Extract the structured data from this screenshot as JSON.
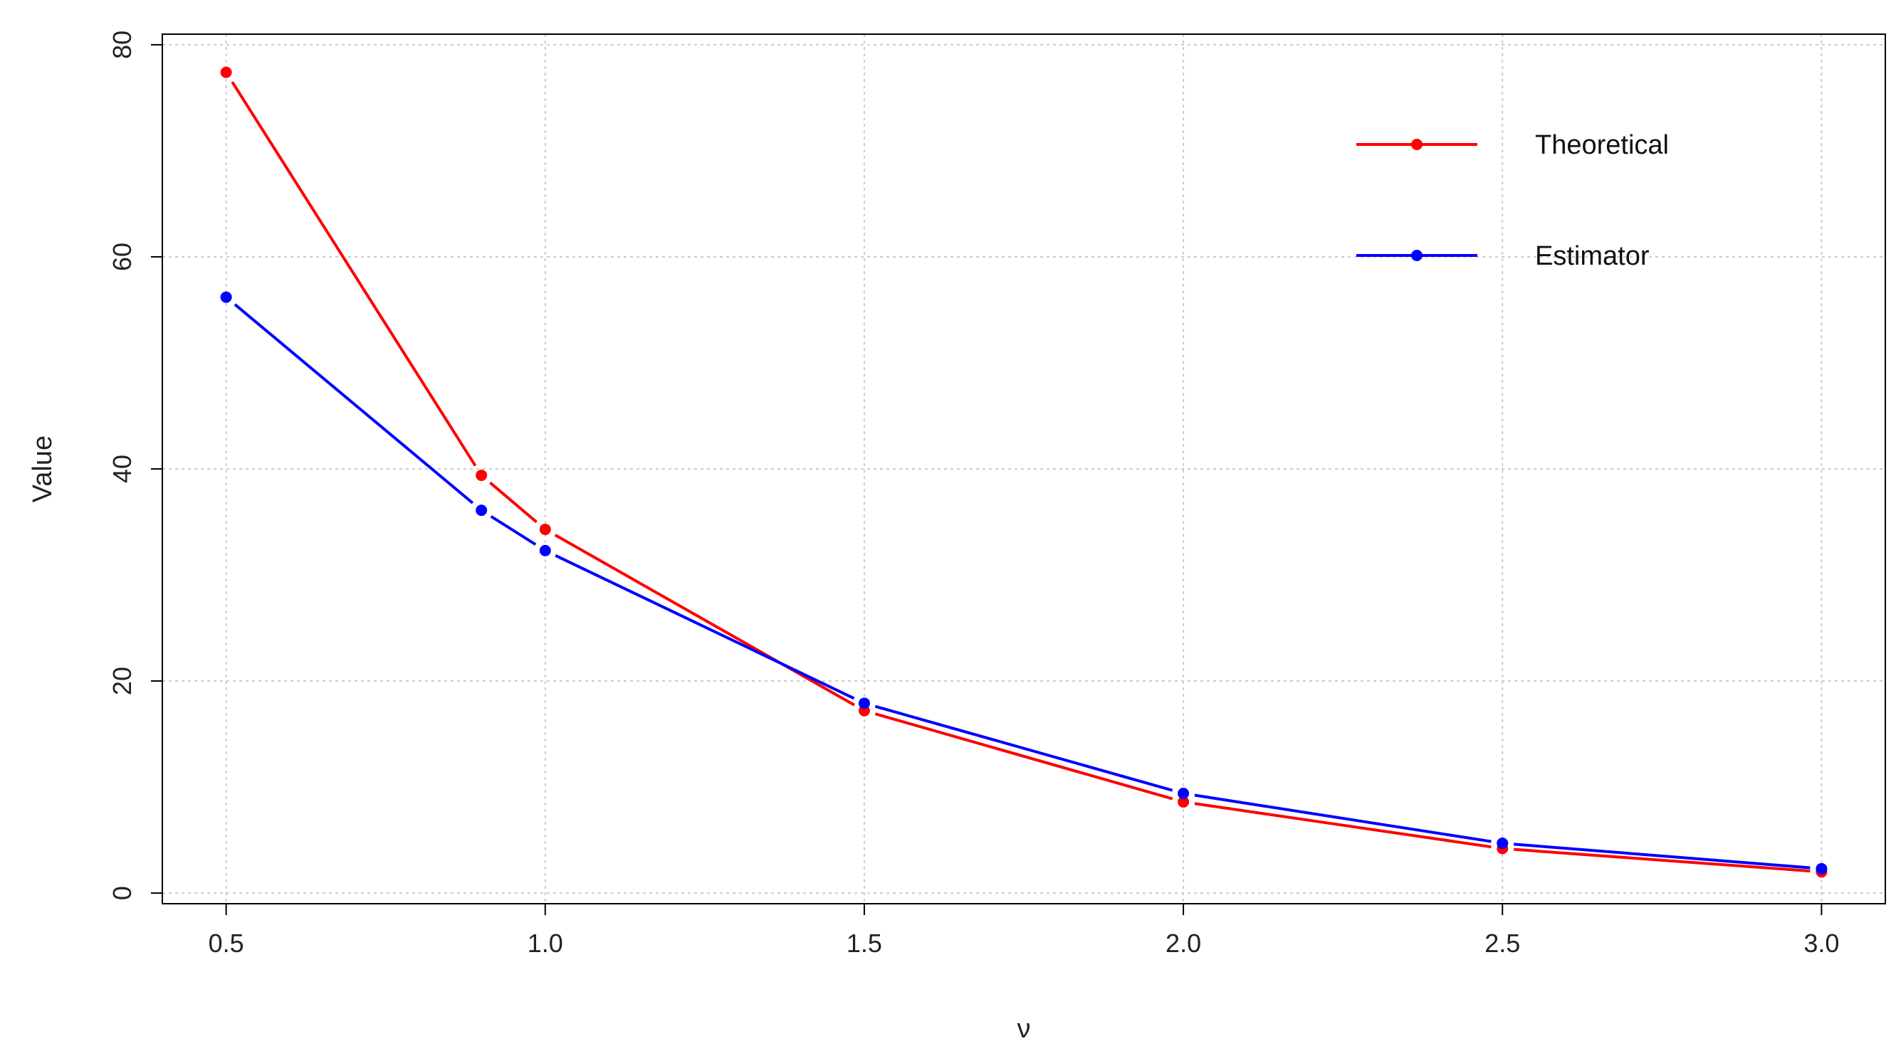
{
  "chart_data": {
    "type": "line",
    "xlabel": "ν",
    "ylabel": "Value",
    "x": [
      0.5,
      0.9,
      1.0,
      1.5,
      2.0,
      2.5,
      3.0
    ],
    "xlim": [
      0.4,
      3.1
    ],
    "ylim": [
      -1,
      81
    ],
    "xticks": [
      0.5,
      1.0,
      1.5,
      2.0,
      2.5,
      3.0
    ],
    "xtick_labels": [
      "0.5",
      "1.0",
      "1.5",
      "2.0",
      "2.5",
      "3.0"
    ],
    "yticks": [
      0,
      20,
      40,
      60,
      80
    ],
    "ytick_labels": [
      "0",
      "20",
      "40",
      "60",
      "80"
    ],
    "grid": true,
    "legend_position": "top-right",
    "series": [
      {
        "name": "Theoretical",
        "color": "#ff0000",
        "values": [
          77.4,
          39.4,
          34.3,
          17.2,
          8.6,
          4.2,
          2.0
        ]
      },
      {
        "name": "Estimator",
        "color": "#0000ff",
        "values": [
          56.2,
          36.1,
          32.3,
          17.9,
          9.4,
          4.7,
          2.3
        ]
      }
    ]
  }
}
